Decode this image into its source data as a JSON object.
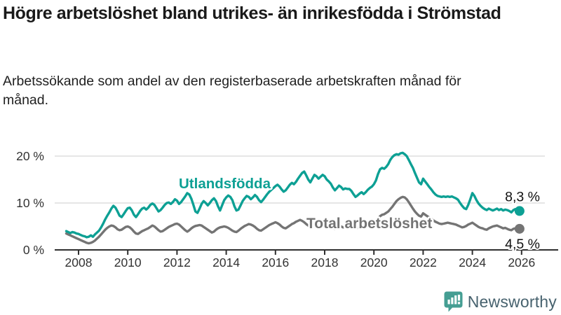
{
  "header": {
    "title": "Högre arbetslöshet bland utrikes- än inrikesfödda i Strömstad",
    "subtitle": "Arbetssökande som andel av den registerbaserade arbetskraften månad för månad."
  },
  "footer": {
    "brand": "Newsworthy"
  },
  "colors": {
    "series_teal": "#0da094",
    "series_gray": "#747474",
    "grid": "#dedede",
    "axis": "#2f2f2f",
    "tick_text": "#333333",
    "value_text": "#111111",
    "brand_icon": "#459e93",
    "brand_text": "#47626e"
  },
  "chart_data": {
    "type": "line",
    "title": "Högre arbetslöshet bland utrikes- än inrikesfödda i Strömstad",
    "subtitle": "Arbetssökande som andel av den registerbaserade arbetskraften månad för månad.",
    "unit": "%",
    "frequency": "monthly",
    "start": "2007-07",
    "end": "2025-12",
    "ylim": [
      0,
      22
    ],
    "grid": "horizontal-only",
    "yticks": [
      {
        "value": 0,
        "label": "0 %"
      },
      {
        "value": 10,
        "label": "10 %"
      },
      {
        "value": 20,
        "label": "20 %"
      }
    ],
    "xticks": [
      2008,
      2010,
      2012,
      2014,
      2016,
      2018,
      2020,
      2022,
      2024,
      2026
    ],
    "series": [
      {
        "name": "Utlandsfödda",
        "color": "#0da094",
        "end_label": "8,3 %",
        "values": [
          4.0,
          3.8,
          3.6,
          3.8,
          3.7,
          3.5,
          3.4,
          3.2,
          3.0,
          2.9,
          2.7,
          2.8,
          3.1,
          2.8,
          3.3,
          3.7,
          4.1,
          4.8,
          5.6,
          6.5,
          7.3,
          8.0,
          8.8,
          9.4,
          9.0,
          8.2,
          7.3,
          7.0,
          7.6,
          8.3,
          8.9,
          9.0,
          8.4,
          7.5,
          7.0,
          7.6,
          8.3,
          8.8,
          9.0,
          8.6,
          9.0,
          9.6,
          9.9,
          9.6,
          8.9,
          8.2,
          8.5,
          9.0,
          9.6,
          10.0,
          10.1,
          9.8,
          10.2,
          10.8,
          10.5,
          9.8,
          10.2,
          10.8,
          11.4,
          12.1,
          11.8,
          10.9,
          9.6,
          8.2,
          7.9,
          8.8,
          9.8,
          10.4,
          10.0,
          9.5,
          10.0,
          10.6,
          11.0,
          10.4,
          9.3,
          8.4,
          9.5,
          10.6,
          11.2,
          11.6,
          11.3,
          10.6,
          9.3,
          8.4,
          8.6,
          9.5,
          10.4,
          11.0,
          11.5,
          11.3,
          10.8,
          11.2,
          11.7,
          11.3,
          10.6,
          10.2,
          10.7,
          11.3,
          11.9,
          12.4,
          12.8,
          13.2,
          13.6,
          13.9,
          13.5,
          12.9,
          12.4,
          12.7,
          13.3,
          13.9,
          14.3,
          14.0,
          14.5,
          15.2,
          15.8,
          16.4,
          16.7,
          15.9,
          15.0,
          14.4,
          15.2,
          16.0,
          15.7,
          15.2,
          15.6,
          16.0,
          15.7,
          15.0,
          14.6,
          14.1,
          13.3,
          12.7,
          13.2,
          13.7,
          13.4,
          12.9,
          13.1,
          13.0,
          13.0,
          12.6,
          11.9,
          11.3,
          11.6,
          12.0,
          12.3,
          11.9,
          12.3,
          12.8,
          13.2,
          13.5,
          14.0,
          14.8,
          16.2,
          17.2,
          17.5,
          17.3,
          17.7,
          18.3,
          19.2,
          19.8,
          20.2,
          20.4,
          20.3,
          20.6,
          20.7,
          20.4,
          20.0,
          19.2,
          18.3,
          17.5,
          16.4,
          15.4,
          14.4,
          14.0,
          15.2,
          14.6,
          14.0,
          13.4,
          12.9,
          12.3,
          11.8,
          11.5,
          11.4,
          11.3,
          11.4,
          11.3,
          11.4,
          11.3,
          11.4,
          11.2,
          11.0,
          10.7,
          10.0,
          9.4,
          8.9,
          8.7,
          9.6,
          10.8,
          12.1,
          11.5,
          10.6,
          9.9,
          9.4,
          9.0,
          8.7,
          8.5,
          8.8,
          8.6,
          8.4,
          8.6,
          8.8,
          8.5,
          8.7,
          8.4,
          8.6,
          8.5,
          8.3,
          8.0,
          8.5,
          8.7,
          8.4,
          8.3
        ]
      },
      {
        "name": "Total arbetslöshet",
        "color": "#747474",
        "end_label": "4,5 %",
        "values": [
          3.5,
          3.3,
          3.1,
          2.9,
          2.7,
          2.5,
          2.3,
          2.1,
          1.9,
          1.7,
          1.5,
          1.4,
          1.5,
          1.7,
          2.0,
          2.4,
          2.8,
          3.3,
          3.8,
          4.3,
          4.7,
          5.0,
          5.2,
          5.1,
          4.8,
          4.4,
          4.2,
          4.3,
          4.6,
          4.9,
          5.0,
          4.8,
          4.4,
          3.9,
          3.5,
          3.4,
          3.7,
          4.0,
          4.2,
          4.4,
          4.6,
          4.9,
          5.2,
          5.0,
          4.6,
          4.2,
          3.9,
          4.0,
          4.3,
          4.6,
          4.9,
          5.1,
          5.3,
          5.5,
          5.6,
          5.4,
          5.0,
          4.6,
          4.2,
          3.9,
          4.2,
          4.6,
          4.9,
          5.1,
          5.2,
          5.3,
          5.2,
          4.9,
          4.6,
          4.3,
          4.0,
          3.7,
          3.9,
          4.3,
          4.6,
          4.8,
          4.9,
          5.0,
          4.9,
          4.7,
          4.4,
          4.1,
          3.9,
          3.8,
          4.1,
          4.5,
          4.8,
          5.1,
          5.3,
          5.5,
          5.4,
          5.2,
          4.9,
          4.5,
          4.2,
          4.1,
          4.4,
          4.7,
          5.0,
          5.3,
          5.5,
          5.7,
          5.9,
          5.7,
          5.4,
          5.0,
          4.7,
          4.6,
          4.9,
          5.2,
          5.5,
          5.7,
          6.0,
          6.2,
          6.4,
          6.2,
          5.9,
          5.5,
          5.2,
          5.0,
          5.3,
          5.6,
          5.5,
          5.3,
          5.5,
          5.7,
          5.8,
          5.6,
          5.3,
          5.0,
          4.7,
          4.5,
          4.8,
          5.1,
          5.0,
          4.8,
          5.0,
          5.2,
          5.3,
          5.1,
          4.8,
          4.6,
          4.7,
          4.9,
          5.1,
          4.9,
          5.0,
          5.2,
          5.3,
          5.4,
          5.5,
          5.8,
          6.5,
          7.2,
          7.5,
          7.6,
          7.9,
          8.2,
          8.7,
          9.2,
          9.8,
          10.4,
          10.8,
          11.1,
          11.3,
          11.2,
          10.8,
          10.2,
          9.5,
          8.8,
          8.2,
          7.7,
          7.3,
          7.1,
          7.8,
          7.5,
          7.2,
          6.9,
          6.6,
          6.3,
          6.0,
          5.8,
          5.6,
          5.5,
          5.6,
          5.7,
          5.8,
          5.7,
          5.6,
          5.5,
          5.4,
          5.2,
          5.0,
          4.8,
          4.9,
          5.1,
          5.4,
          5.6,
          5.8,
          5.5,
          5.2,
          4.9,
          4.7,
          4.6,
          4.4,
          4.3,
          4.6,
          4.8,
          5.0,
          5.1,
          5.2,
          5.0,
          4.8,
          4.6,
          4.7,
          4.5,
          4.3,
          4.2,
          4.5,
          4.6,
          4.5,
          4.5
        ]
      }
    ]
  }
}
